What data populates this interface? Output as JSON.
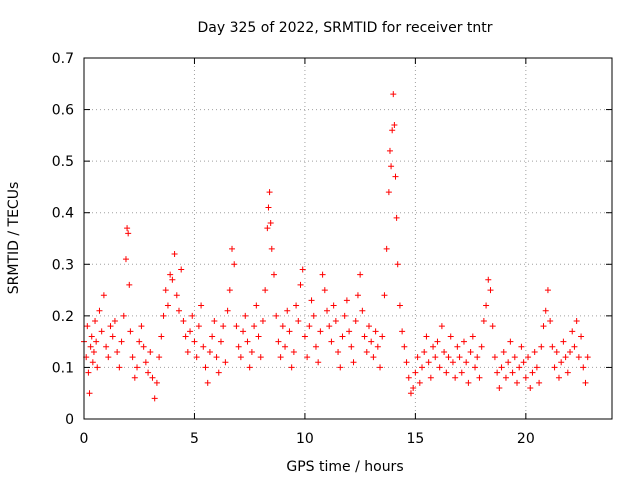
{
  "chart_data": {
    "type": "scatter",
    "title": "Day 325 of 2022, SRMTID for receiver tntr",
    "xlabel": "GPS time / hours",
    "ylabel": "SRMTID / TECUs",
    "xlim": [
      0,
      23.9
    ],
    "ylim": [
      0,
      0.7
    ],
    "xticks": [
      0,
      5,
      10,
      15,
      20
    ],
    "xtick_labels": [
      "0",
      "5",
      "10",
      "15",
      "20"
    ],
    "yticks": [
      0,
      0.1,
      0.2,
      0.3,
      0.4,
      0.5,
      0.6,
      0.7
    ],
    "ytick_labels": [
      "0",
      "0.1",
      "0.2",
      "0.3",
      "0.4",
      "0.5",
      "0.6",
      "0.7"
    ],
    "grid": true,
    "marker": "+",
    "color": "#ff0000",
    "series": [
      {
        "name": "SRMTID",
        "points": [
          [
            0.0,
            0.15
          ],
          [
            0.1,
            0.12
          ],
          [
            0.15,
            0.18
          ],
          [
            0.2,
            0.09
          ],
          [
            0.25,
            0.05
          ],
          [
            0.3,
            0.14
          ],
          [
            0.35,
            0.16
          ],
          [
            0.4,
            0.11
          ],
          [
            0.45,
            0.13
          ],
          [
            0.5,
            0.19
          ],
          [
            0.55,
            0.15
          ],
          [
            0.6,
            0.1
          ],
          [
            0.7,
            0.21
          ],
          [
            0.8,
            0.17
          ],
          [
            0.9,
            0.24
          ],
          [
            1.0,
            0.14
          ],
          [
            1.1,
            0.12
          ],
          [
            1.2,
            0.18
          ],
          [
            1.3,
            0.16
          ],
          [
            1.4,
            0.19
          ],
          [
            1.5,
            0.13
          ],
          [
            1.6,
            0.1
          ],
          [
            1.7,
            0.15
          ],
          [
            1.8,
            0.2
          ],
          [
            1.9,
            0.31
          ],
          [
            1.95,
            0.37
          ],
          [
            2.0,
            0.36
          ],
          [
            2.05,
            0.26
          ],
          [
            2.1,
            0.17
          ],
          [
            2.2,
            0.12
          ],
          [
            2.3,
            0.08
          ],
          [
            2.4,
            0.1
          ],
          [
            2.5,
            0.15
          ],
          [
            2.6,
            0.18
          ],
          [
            2.7,
            0.14
          ],
          [
            2.8,
            0.11
          ],
          [
            2.9,
            0.09
          ],
          [
            3.0,
            0.13
          ],
          [
            3.1,
            0.08
          ],
          [
            3.2,
            0.04
          ],
          [
            3.3,
            0.07
          ],
          [
            3.4,
            0.12
          ],
          [
            3.5,
            0.16
          ],
          [
            3.6,
            0.2
          ],
          [
            3.7,
            0.25
          ],
          [
            3.8,
            0.22
          ],
          [
            3.9,
            0.28
          ],
          [
            4.0,
            0.27
          ],
          [
            4.1,
            0.32
          ],
          [
            4.2,
            0.24
          ],
          [
            4.3,
            0.21
          ],
          [
            4.4,
            0.29
          ],
          [
            4.5,
            0.19
          ],
          [
            4.6,
            0.16
          ],
          [
            4.7,
            0.13
          ],
          [
            4.8,
            0.17
          ],
          [
            4.9,
            0.2
          ],
          [
            5.0,
            0.15
          ],
          [
            5.1,
            0.12
          ],
          [
            5.2,
            0.18
          ],
          [
            5.3,
            0.22
          ],
          [
            5.4,
            0.14
          ],
          [
            5.5,
            0.1
          ],
          [
            5.6,
            0.07
          ],
          [
            5.7,
            0.13
          ],
          [
            5.8,
            0.16
          ],
          [
            5.9,
            0.19
          ],
          [
            6.0,
            0.12
          ],
          [
            6.1,
            0.09
          ],
          [
            6.2,
            0.15
          ],
          [
            6.3,
            0.18
          ],
          [
            6.4,
            0.11
          ],
          [
            6.5,
            0.21
          ],
          [
            6.6,
            0.25
          ],
          [
            6.7,
            0.33
          ],
          [
            6.8,
            0.3
          ],
          [
            6.9,
            0.18
          ],
          [
            7.0,
            0.14
          ],
          [
            7.1,
            0.12
          ],
          [
            7.2,
            0.17
          ],
          [
            7.3,
            0.2
          ],
          [
            7.4,
            0.15
          ],
          [
            7.5,
            0.1
          ],
          [
            7.6,
            0.13
          ],
          [
            7.7,
            0.18
          ],
          [
            7.8,
            0.22
          ],
          [
            7.9,
            0.16
          ],
          [
            8.0,
            0.12
          ],
          [
            8.1,
            0.19
          ],
          [
            8.2,
            0.25
          ],
          [
            8.3,
            0.37
          ],
          [
            8.35,
            0.41
          ],
          [
            8.4,
            0.44
          ],
          [
            8.45,
            0.38
          ],
          [
            8.5,
            0.33
          ],
          [
            8.6,
            0.28
          ],
          [
            8.7,
            0.2
          ],
          [
            8.8,
            0.15
          ],
          [
            8.9,
            0.12
          ],
          [
            9.0,
            0.18
          ],
          [
            9.1,
            0.14
          ],
          [
            9.2,
            0.21
          ],
          [
            9.3,
            0.17
          ],
          [
            9.4,
            0.1
          ],
          [
            9.5,
            0.13
          ],
          [
            9.6,
            0.22
          ],
          [
            9.7,
            0.19
          ],
          [
            9.8,
            0.26
          ],
          [
            9.9,
            0.29
          ],
          [
            10.0,
            0.16
          ],
          [
            10.1,
            0.12
          ],
          [
            10.2,
            0.18
          ],
          [
            10.3,
            0.23
          ],
          [
            10.4,
            0.2
          ],
          [
            10.5,
            0.14
          ],
          [
            10.6,
            0.11
          ],
          [
            10.7,
            0.17
          ],
          [
            10.8,
            0.28
          ],
          [
            10.9,
            0.25
          ],
          [
            11.0,
            0.21
          ],
          [
            11.1,
            0.18
          ],
          [
            11.2,
            0.15
          ],
          [
            11.3,
            0.22
          ],
          [
            11.4,
            0.19
          ],
          [
            11.5,
            0.13
          ],
          [
            11.6,
            0.1
          ],
          [
            11.7,
            0.16
          ],
          [
            11.8,
            0.2
          ],
          [
            11.9,
            0.23
          ],
          [
            12.0,
            0.17
          ],
          [
            12.1,
            0.14
          ],
          [
            12.2,
            0.11
          ],
          [
            12.3,
            0.19
          ],
          [
            12.4,
            0.24
          ],
          [
            12.5,
            0.28
          ],
          [
            12.6,
            0.21
          ],
          [
            12.7,
            0.16
          ],
          [
            12.8,
            0.13
          ],
          [
            12.9,
            0.18
          ],
          [
            13.0,
            0.15
          ],
          [
            13.1,
            0.12
          ],
          [
            13.2,
            0.17
          ],
          [
            13.3,
            0.14
          ],
          [
            13.4,
            0.1
          ],
          [
            13.5,
            0.16
          ],
          [
            13.6,
            0.24
          ],
          [
            13.7,
            0.33
          ],
          [
            13.8,
            0.44
          ],
          [
            13.85,
            0.52
          ],
          [
            13.9,
            0.49
          ],
          [
            13.95,
            0.56
          ],
          [
            14.0,
            0.63
          ],
          [
            14.05,
            0.57
          ],
          [
            14.1,
            0.47
          ],
          [
            14.15,
            0.39
          ],
          [
            14.2,
            0.3
          ],
          [
            14.3,
            0.22
          ],
          [
            14.4,
            0.17
          ],
          [
            14.5,
            0.14
          ],
          [
            14.6,
            0.11
          ],
          [
            14.7,
            0.08
          ],
          [
            14.8,
            0.05
          ],
          [
            14.9,
            0.06
          ],
          [
            15.0,
            0.09
          ],
          [
            15.1,
            0.12
          ],
          [
            15.2,
            0.07
          ],
          [
            15.3,
            0.1
          ],
          [
            15.4,
            0.13
          ],
          [
            15.5,
            0.16
          ],
          [
            15.6,
            0.11
          ],
          [
            15.7,
            0.08
          ],
          [
            15.8,
            0.14
          ],
          [
            15.9,
            0.12
          ],
          [
            16.0,
            0.15
          ],
          [
            16.1,
            0.1
          ],
          [
            16.2,
            0.18
          ],
          [
            16.3,
            0.13
          ],
          [
            16.4,
            0.09
          ],
          [
            16.5,
            0.12
          ],
          [
            16.6,
            0.16
          ],
          [
            16.7,
            0.11
          ],
          [
            16.8,
            0.08
          ],
          [
            16.9,
            0.14
          ],
          [
            17.0,
            0.12
          ],
          [
            17.1,
            0.09
          ],
          [
            17.2,
            0.15
          ],
          [
            17.3,
            0.11
          ],
          [
            17.4,
            0.07
          ],
          [
            17.5,
            0.13
          ],
          [
            17.6,
            0.16
          ],
          [
            17.7,
            0.1
          ],
          [
            17.8,
            0.12
          ],
          [
            17.9,
            0.08
          ],
          [
            18.0,
            0.14
          ],
          [
            18.1,
            0.19
          ],
          [
            18.2,
            0.22
          ],
          [
            18.3,
            0.27
          ],
          [
            18.4,
            0.25
          ],
          [
            18.5,
            0.18
          ],
          [
            18.6,
            0.12
          ],
          [
            18.7,
            0.09
          ],
          [
            18.8,
            0.06
          ],
          [
            18.9,
            0.1
          ],
          [
            19.0,
            0.13
          ],
          [
            19.1,
            0.08
          ],
          [
            19.2,
            0.11
          ],
          [
            19.3,
            0.15
          ],
          [
            19.4,
            0.09
          ],
          [
            19.5,
            0.12
          ],
          [
            19.6,
            0.07
          ],
          [
            19.7,
            0.1
          ],
          [
            19.8,
            0.14
          ],
          [
            19.9,
            0.11
          ],
          [
            20.0,
            0.08
          ],
          [
            20.1,
            0.12
          ],
          [
            20.2,
            0.06
          ],
          [
            20.3,
            0.09
          ],
          [
            20.4,
            0.13
          ],
          [
            20.5,
            0.1
          ],
          [
            20.6,
            0.07
          ],
          [
            20.7,
            0.14
          ],
          [
            20.8,
            0.18
          ],
          [
            20.9,
            0.21
          ],
          [
            21.0,
            0.25
          ],
          [
            21.1,
            0.19
          ],
          [
            21.2,
            0.14
          ],
          [
            21.3,
            0.1
          ],
          [
            21.4,
            0.13
          ],
          [
            21.5,
            0.08
          ],
          [
            21.6,
            0.11
          ],
          [
            21.7,
            0.15
          ],
          [
            21.8,
            0.12
          ],
          [
            21.9,
            0.09
          ],
          [
            22.0,
            0.13
          ],
          [
            22.1,
            0.17
          ],
          [
            22.2,
            0.14
          ],
          [
            22.3,
            0.19
          ],
          [
            22.4,
            0.12
          ],
          [
            22.5,
            0.16
          ],
          [
            22.6,
            0.1
          ],
          [
            22.7,
            0.07
          ],
          [
            22.8,
            0.12
          ]
        ]
      }
    ]
  }
}
